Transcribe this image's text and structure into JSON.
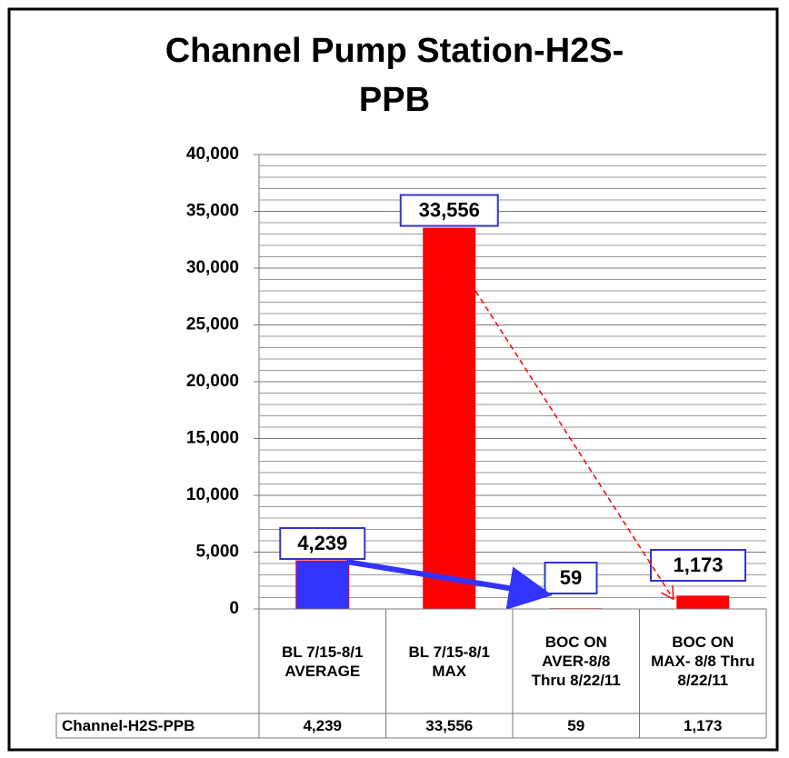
{
  "chart_data": {
    "type": "bar",
    "title": "Channel Pump Station-H2S-PPB",
    "categories": [
      "BL 7/15-8/1 AVERAGE",
      "BL  7/15-8/1 MAX",
      "BOC ON AVER-8/8 Thru 8/22/11",
      "BOC ON MAX- 8/8 Thru 8/22/11"
    ],
    "series": [
      {
        "name": "Channel-H2S-PPB",
        "colors": [
          "#3333ff",
          "#ff0000",
          "#ff0000",
          "#ff0000"
        ],
        "values": [
          4239,
          33556,
          59,
          1173
        ],
        "value_labels": [
          "4,239",
          "33,556",
          "59",
          "1,173"
        ]
      }
    ],
    "ylim": [
      0,
      40000
    ],
    "yticks": [
      {
        "value": 0,
        "label": "0"
      },
      {
        "value": 5000,
        "label": "5,000"
      },
      {
        "value": 10000,
        "label": "10,000"
      },
      {
        "value": 15000,
        "label": "15,000"
      },
      {
        "value": 20000,
        "label": "20,000"
      },
      {
        "value": 25000,
        "label": "25,000"
      },
      {
        "value": 30000,
        "label": "30,000"
      },
      {
        "value": 35000,
        "label": "35,000"
      },
      {
        "value": 40000,
        "label": "40,000"
      }
    ],
    "minor_yticks": [
      1000,
      2000,
      3000,
      4000,
      6000,
      7000,
      8000,
      9000,
      11000,
      12000,
      13000,
      14000,
      16000,
      17000,
      18000,
      19000,
      21000,
      22000,
      23000,
      24000,
      26000,
      27000,
      28000,
      29000,
      31000,
      32000,
      33000,
      34000,
      36000,
      37000,
      38000,
      39000
    ],
    "grid": true,
    "data_table": true
  }
}
